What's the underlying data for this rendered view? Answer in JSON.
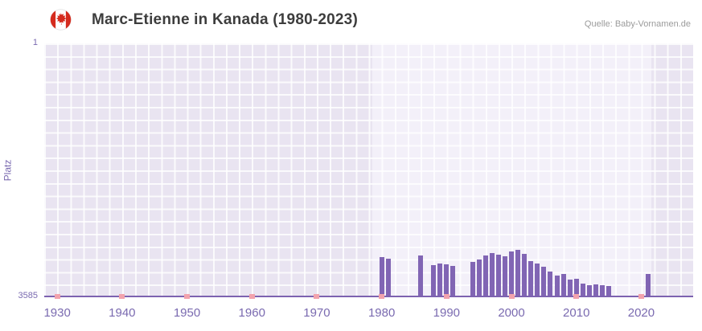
{
  "header": {
    "title": "Marc-Etienne in Kanada (1980-2023)",
    "source": "Quelle: Baby-Vornamen.de"
  },
  "icons": {
    "flag": "canada-flag-icon"
  },
  "chart_data": {
    "type": "bar",
    "title": "Marc-Etienne in Kanada (1980-2023)",
    "xlabel": "",
    "ylabel": "Platz",
    "grid": true,
    "legend": false,
    "y_axis": {
      "inverted": true,
      "min": 1,
      "max": 3585,
      "top_tick_label": "1",
      "bottom_tick_label": "3585"
    },
    "x_axis": {
      "domain_min": 1928,
      "domain_max": 2028,
      "tick_years": [
        1930,
        1940,
        1950,
        1960,
        1970,
        1980,
        1990,
        2000,
        2010,
        2020
      ],
      "tick_labels": [
        "1930",
        "1940",
        "1950",
        "1960",
        "1970",
        "1980",
        "1990",
        "2000",
        "2010",
        "2020"
      ]
    },
    "highlight_band": {
      "from_year": 1978.5,
      "to_year": 2021.5
    },
    "series": [
      {
        "name": "Platz von Marc-Etienne",
        "points": [
          {
            "year": 1980,
            "rank": 3020
          },
          {
            "year": 1981,
            "rank": 3040
          },
          {
            "year": 1986,
            "rank": 3000
          },
          {
            "year": 1988,
            "rank": 3130
          },
          {
            "year": 1989,
            "rank": 3110
          },
          {
            "year": 1990,
            "rank": 3120
          },
          {
            "year": 1991,
            "rank": 3140
          },
          {
            "year": 1994,
            "rank": 3090
          },
          {
            "year": 1995,
            "rank": 3050
          },
          {
            "year": 1996,
            "rank": 2990
          },
          {
            "year": 1997,
            "rank": 2960
          },
          {
            "year": 1998,
            "rank": 2980
          },
          {
            "year": 1999,
            "rank": 3010
          },
          {
            "year": 2000,
            "rank": 2940
          },
          {
            "year": 2001,
            "rank": 2910
          },
          {
            "year": 2002,
            "rank": 2970
          },
          {
            "year": 2003,
            "rank": 3070
          },
          {
            "year": 2004,
            "rank": 3110
          },
          {
            "year": 2005,
            "rank": 3150
          },
          {
            "year": 2006,
            "rank": 3220
          },
          {
            "year": 2007,
            "rank": 3280
          },
          {
            "year": 2008,
            "rank": 3260
          },
          {
            "year": 2009,
            "rank": 3340
          },
          {
            "year": 2010,
            "rank": 3320
          },
          {
            "year": 2011,
            "rank": 3390
          },
          {
            "year": 2012,
            "rank": 3410
          },
          {
            "year": 2013,
            "rank": 3400
          },
          {
            "year": 2014,
            "rank": 3410
          },
          {
            "year": 2015,
            "rank": 3420
          },
          {
            "year": 2021,
            "rank": 3250
          }
        ]
      }
    ],
    "axis_marker_years": [
      1930,
      1940,
      1950,
      1960,
      1970,
      1980,
      1990,
      2000,
      2010,
      2020
    ],
    "colors": {
      "bar": "#8165b4",
      "plot_bg": "#e9e4f1",
      "band_bg": "#f3f0f9",
      "grid": "rgba(255,255,255,0.8)",
      "axis_text": "#7a6ab0",
      "marker": "#f2a3ad",
      "axis_line": "#7d62b0",
      "title": "#3d3d3d",
      "source": "#9b9b9b",
      "flag_red": "#d52b1e"
    }
  }
}
